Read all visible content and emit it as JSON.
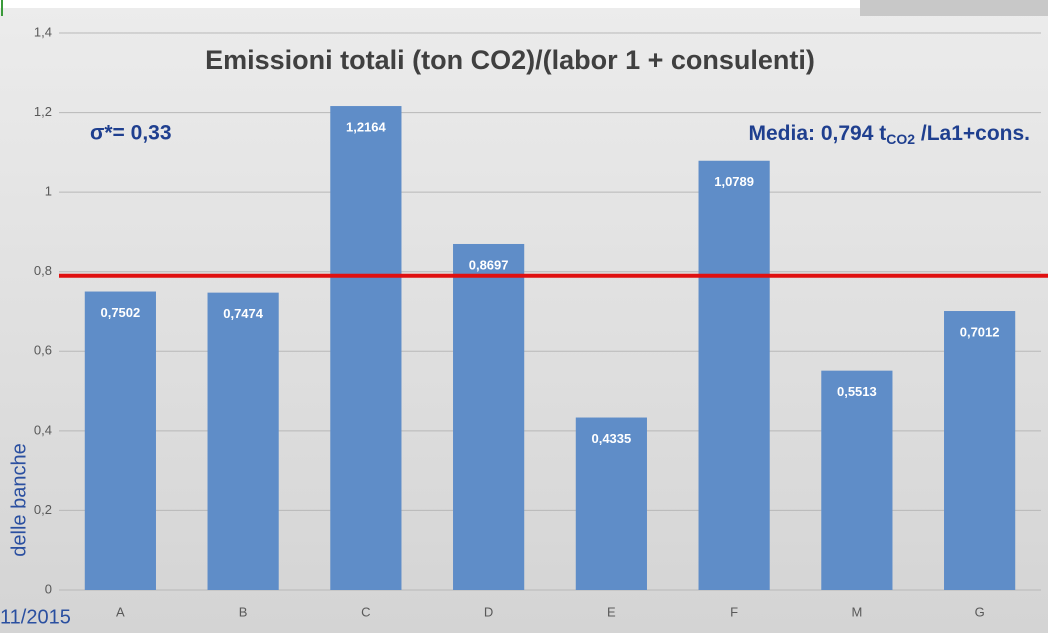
{
  "chart_data": {
    "type": "bar",
    "title": "Emissioni totali (ton CO2)/(labor 1 + consulenti)",
    "categories": [
      "A",
      "B",
      "C",
      "D",
      "E",
      "F",
      "M",
      "G"
    ],
    "values": [
      0.7502,
      0.7474,
      1.2164,
      0.8697,
      0.4335,
      1.0789,
      0.5513,
      0.7012
    ],
    "value_labels": [
      "0,7502",
      "0,7474",
      "1,2164",
      "0,8697",
      "0,4335",
      "1,0789",
      "0,5513",
      "0,7012"
    ],
    "color": "#5f8dc8",
    "ylim": [
      0,
      1.4
    ],
    "yticks": [
      0,
      {
        "value": 0.2,
        "label": "0,2"
      },
      {
        "value": 0.4,
        "label": "0,4"
      },
      {
        "value": 0.6,
        "label": "0,6"
      },
      {
        "value": 0.8,
        "label": "0,8"
      },
      1,
      {
        "value": 1.2,
        "label": "1,2"
      },
      {
        "value": 1.4,
        "label": "1,4"
      }
    ],
    "grid": true,
    "reference_line": {
      "value": 0.79,
      "color": "#e01010"
    },
    "sigma_label": "σ*= 0,33",
    "mean_label": {
      "main": "Media: 0,794 t",
      "sub": "CO2",
      "tail": " /La1+cons."
    }
  },
  "slide": {
    "side_text": "delle banche",
    "date": "11/2015"
  }
}
